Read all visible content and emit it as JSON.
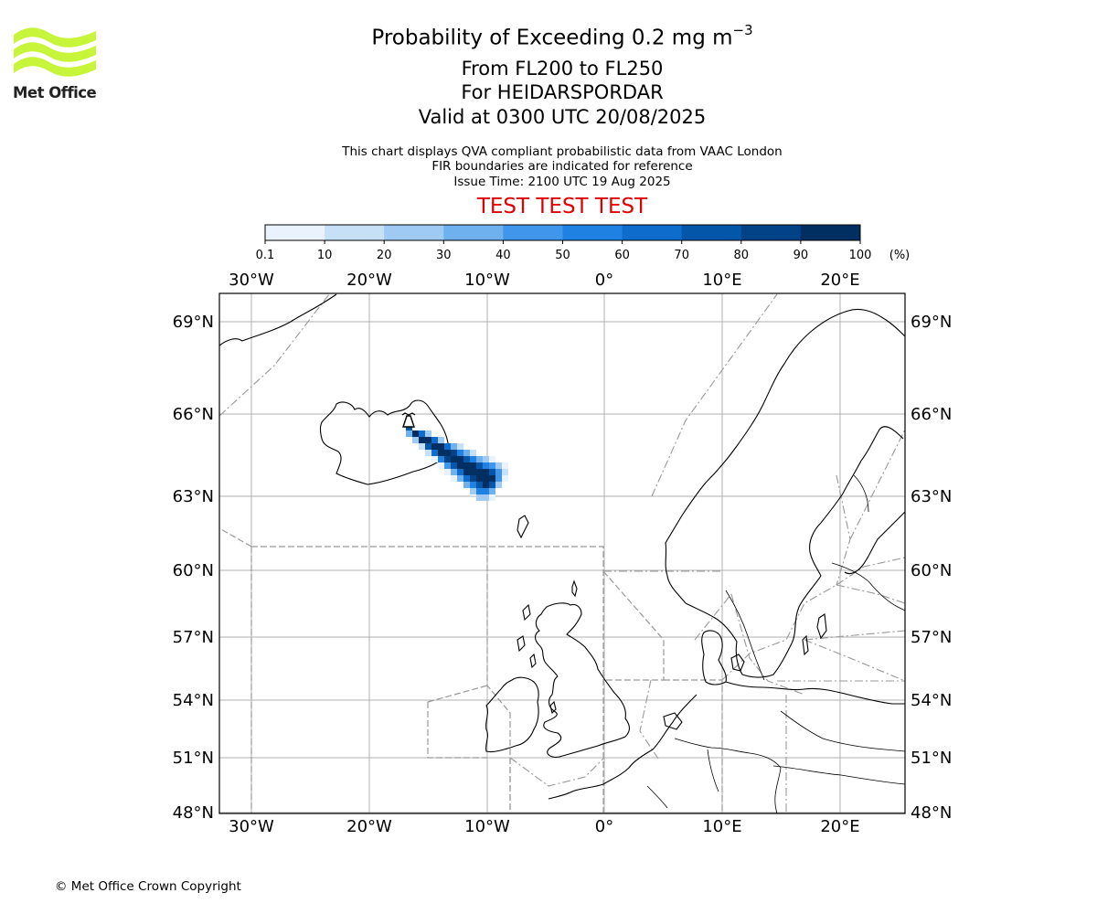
{
  "title": {
    "main": "Probability of Exceeding 0.2 mg m",
    "main_sup": "−3",
    "flight_levels": "From FL200 to FL250",
    "volcano": "For HEIDARSPORDAR",
    "valid": "Valid at 0300 UTC 20/08/2025"
  },
  "info": {
    "line1": "This chart displays QVA compliant probabilistic data from VAAC London",
    "line2": "FIR boundaries are indicated for reference",
    "issue": "Issue Time: 2100 UTC 19 Aug 2025"
  },
  "test_banner": "TEST TEST TEST",
  "logo_text": "Met Office",
  "copyright": "© Met Office Crown Copyright",
  "colorbar": {
    "ticks": [
      "0.1",
      "10",
      "20",
      "30",
      "40",
      "50",
      "60",
      "70",
      "80",
      "90",
      "100"
    ],
    "unit": "(%)",
    "colors": [
      "#eaf3fd",
      "#c6e0f8",
      "#9fcaf3",
      "#6fb0ee",
      "#3f96ea",
      "#1f82e3",
      "#0d6ccc",
      "#0457a8",
      "#024287",
      "#012f62"
    ]
  },
  "axes": {
    "lon_labels": [
      "30°W",
      "20°W",
      "10°W",
      "0°",
      "10°E",
      "20°E"
    ],
    "lat_labels": [
      "69°N",
      "66°N",
      "63°N",
      "60°N",
      "57°N",
      "54°N",
      "51°N",
      "48°N"
    ]
  },
  "colors": {
    "logo": "#c8f53a",
    "test": "#e00000",
    "grid": "#b0b0b0",
    "fir": "#999999"
  }
}
